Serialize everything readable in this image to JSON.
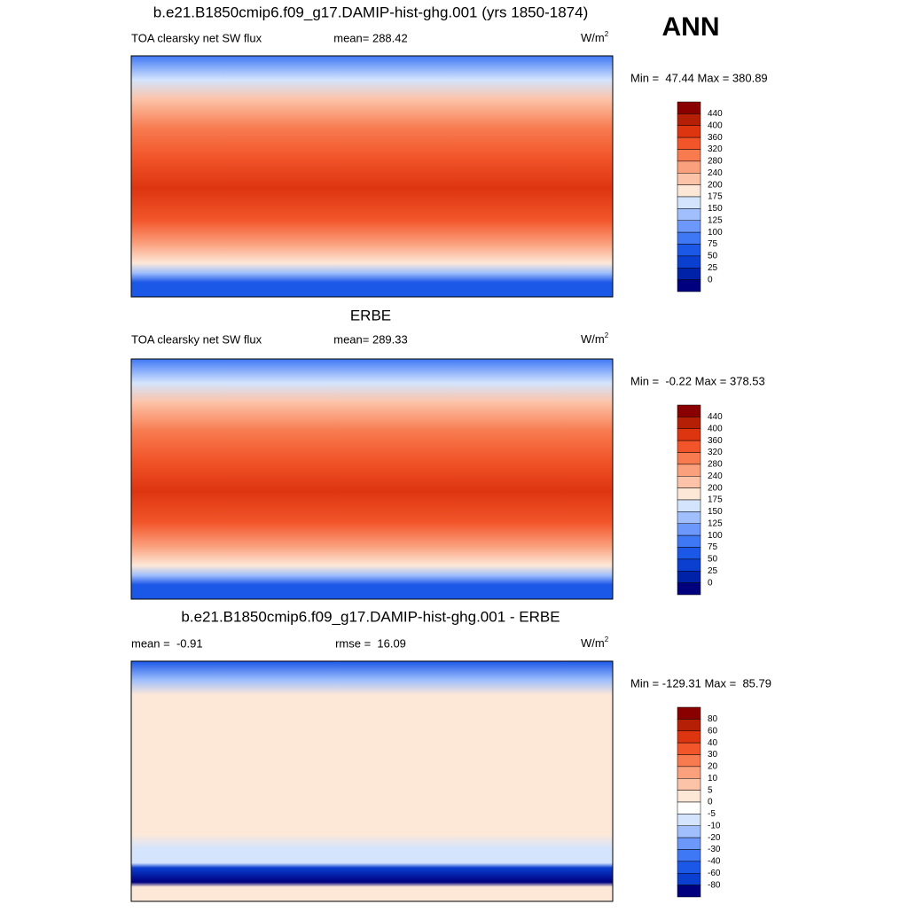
{
  "header": {
    "season": "ANN"
  },
  "panels": [
    {
      "title": "b.e21.B1850cmip6.f09_g17.DAMIP-hist-ghg.001 (yrs 1850-1874)",
      "left": "TOA clearsky net SW flux",
      "center": "mean= 288.42",
      "units": "W/m",
      "units_sup": "2",
      "minmax": "Min =  47.44 Max = 380.89",
      "levels": [
        440,
        400,
        360,
        320,
        280,
        240,
        200,
        175,
        150,
        125,
        100,
        75,
        50,
        25,
        0
      ],
      "colors": [
        "#8a0000",
        "#b51f05",
        "#dd3510",
        "#f2552a",
        "#f87b50",
        "#fba07d",
        "#fcc3a8",
        "#fde8d8",
        "#d4e4fd",
        "#a0bffc",
        "#6b98fa",
        "#3f78f5",
        "#1c58e8",
        "#0a3fd0",
        "#0022a8",
        "#00007f"
      ]
    },
    {
      "title": "ERBE",
      "left": "TOA clearsky net SW flux",
      "center": "mean= 289.33",
      "units": "W/m",
      "units_sup": "2",
      "minmax": "Min =  -0.22 Max = 378.53",
      "levels": [
        440,
        400,
        360,
        320,
        280,
        240,
        200,
        175,
        150,
        125,
        100,
        75,
        50,
        25,
        0
      ],
      "colors": [
        "#8a0000",
        "#b51f05",
        "#dd3510",
        "#f2552a",
        "#f87b50",
        "#fba07d",
        "#fcc3a8",
        "#fde8d8",
        "#d4e4fd",
        "#a0bffc",
        "#6b98fa",
        "#3f78f5",
        "#1c58e8",
        "#0a3fd0",
        "#0022a8",
        "#00007f"
      ]
    },
    {
      "title": "b.e21.B1850cmip6.f09_g17.DAMIP-hist-ghg.001 - ERBE",
      "left": "mean =  -0.91",
      "center": "rmse =  16.09",
      "units": "W/m",
      "units_sup": "2",
      "minmax": "Min = -129.31 Max =  85.79",
      "levels": [
        80,
        60,
        40,
        30,
        20,
        10,
        5,
        0,
        -5,
        -10,
        -20,
        -30,
        -40,
        -60,
        -80
      ],
      "colors": [
        "#8a0000",
        "#b51f05",
        "#dd3510",
        "#f2552a",
        "#f87b50",
        "#fba07d",
        "#fcc3a8",
        "#fde8d8",
        "#ffffff",
        "#d4e4fd",
        "#a0bffc",
        "#6b98fa",
        "#3f78f5",
        "#1c58e8",
        "#0a3fd0",
        "#00007f"
      ]
    }
  ]
}
